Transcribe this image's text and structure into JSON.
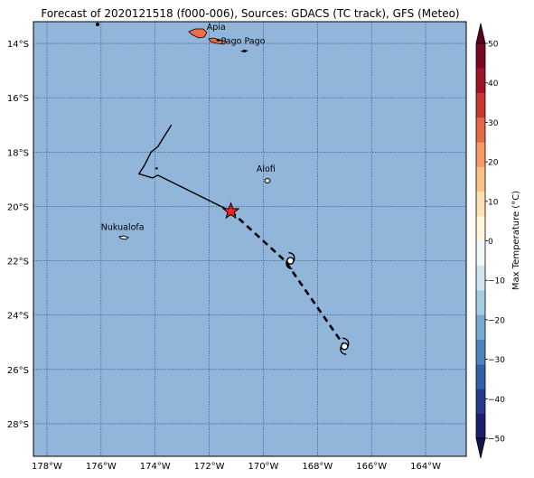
{
  "title": "Forecast of 2020121518 (f000-006), Sources: GDACS (TC track), GFS (Meteo)",
  "map": {
    "lon_range": [
      -178.5,
      -162.5
    ],
    "lat_range": [
      -29.2,
      -13.2
    ],
    "ocean_color": "#92b5da",
    "grid_style": "dotted",
    "x_ticks": [
      {
        "value": -178,
        "label": "178°W"
      },
      {
        "value": -176,
        "label": "176°W"
      },
      {
        "value": -174,
        "label": "174°W"
      },
      {
        "value": -172,
        "label": "172°W"
      },
      {
        "value": -170,
        "label": "170°W"
      },
      {
        "value": -168,
        "label": "168°W"
      },
      {
        "value": -166,
        "label": "166°W"
      },
      {
        "value": -164,
        "label": "164°W"
      }
    ],
    "y_ticks": [
      {
        "value": -14,
        "label": "14°S"
      },
      {
        "value": -16,
        "label": "16°S"
      },
      {
        "value": -18,
        "label": "18°S"
      },
      {
        "value": -20,
        "label": "20°S"
      },
      {
        "value": -22,
        "label": "22°S"
      },
      {
        "value": -24,
        "label": "24°S"
      },
      {
        "value": -26,
        "label": "26°S"
      },
      {
        "value": -28,
        "label": "28°S"
      }
    ],
    "places": [
      {
        "name": "Apia",
        "lon": -171.76,
        "lat": -13.83
      },
      {
        "name": "Pago Pago",
        "lon": -170.7,
        "lat": -14.28
      },
      {
        "name": "Alofi",
        "lon": -169.92,
        "lat": -19.06
      },
      {
        "name": "Nukualofa",
        "lon": -175.2,
        "lat": -21.14
      }
    ],
    "past_track": [
      {
        "lon": -173.4,
        "lat": -17.0
      },
      {
        "lon": -173.9,
        "lat": -17.8
      },
      {
        "lon": -174.15,
        "lat": -18.0
      },
      {
        "lon": -174.4,
        "lat": -18.5
      },
      {
        "lon": -174.6,
        "lat": -18.8
      },
      {
        "lon": -174.1,
        "lat": -18.95
      },
      {
        "lon": -173.9,
        "lat": -18.85
      },
      {
        "lon": -171.2,
        "lat": -20.18
      }
    ],
    "current_position": {
      "lon": -171.2,
      "lat": -20.18
    },
    "forecast_track": [
      {
        "lon": -171.2,
        "lat": -20.18
      },
      {
        "lon": -169.2,
        "lat": -22.0
      },
      {
        "lon": -167.0,
        "lat": -25.15
      }
    ],
    "forecast_symbols": [
      {
        "lon": -169.0,
        "lat": -22.0
      },
      {
        "lon": -167.0,
        "lat": -25.15
      }
    ]
  },
  "colorbar": {
    "label": "Max Temperature (°C)",
    "min": -50,
    "max": 50,
    "tick_labels": [
      "50",
      "40",
      "30",
      "20",
      "10",
      "0",
      "−10",
      "−20",
      "−30",
      "−40",
      "−50"
    ],
    "band_colors": [
      "#1c1e70",
      "#2a3a8f",
      "#3560a8",
      "#4f85bd",
      "#7aaad2",
      "#a4cce3",
      "#cfe6f0",
      "#f0f8fa",
      "#fff6dc",
      "#fde0b4",
      "#fbc288",
      "#f59a63",
      "#e46748",
      "#c73834",
      "#a01428",
      "#79081f"
    ],
    "under_color": "#14144e",
    "over_color": "#5a0418"
  }
}
